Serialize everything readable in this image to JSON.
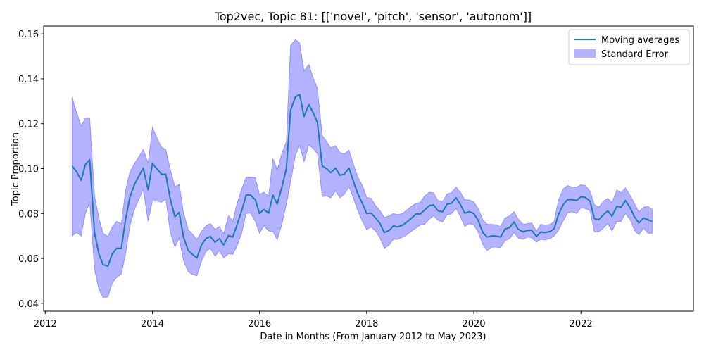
{
  "colors": {
    "line": "#1f77b4",
    "band": "#0000ff",
    "band_opacity": 0.3
  },
  "chart_data": {
    "type": "line",
    "title": "Top2vec, Topic 81: [['novel', 'pitch', 'sensor', 'autonom']]",
    "xlabel": "Date in Months (From January 2012 to May 2023)",
    "ylabel": "Topic Proportion",
    "xlim": [
      2011.97,
      2024.1
    ],
    "ylim": [
      0.0365,
      0.1635
    ],
    "x_ticks": [
      2012,
      2014,
      2016,
      2018,
      2020,
      2022
    ],
    "y_ticks": [
      0.04,
      0.06,
      0.08,
      0.1,
      0.12,
      0.14,
      0.16
    ],
    "x_tick_labels": [
      "2012",
      "2014",
      "2016",
      "2018",
      "2020",
      "2022"
    ],
    "y_tick_labels": [
      "0.04",
      "0.06",
      "0.08",
      "0.10",
      "0.12",
      "0.14",
      "0.16"
    ],
    "grid": false,
    "legend_position": "top-right",
    "legend": [
      {
        "label": "Moving averages",
        "kind": "line"
      },
      {
        "label": "Standard Error",
        "kind": "band"
      }
    ],
    "series": [
      {
        "name": "Moving averages",
        "x": [
          2012.5,
          2012.58,
          2012.67,
          2012.75,
          2012.83,
          2012.92,
          2013.0,
          2013.08,
          2013.17,
          2013.25,
          2013.33,
          2013.42,
          2013.5,
          2013.58,
          2013.67,
          2013.75,
          2013.83,
          2013.92,
          2014.0,
          2014.08,
          2014.17,
          2014.25,
          2014.33,
          2014.42,
          2014.5,
          2014.58,
          2014.67,
          2014.75,
          2014.83,
          2014.92,
          2015.0,
          2015.08,
          2015.17,
          2015.25,
          2015.33,
          2015.42,
          2015.5,
          2015.58,
          2015.67,
          2015.75,
          2015.83,
          2015.92,
          2016.0,
          2016.08,
          2016.17,
          2016.25,
          2016.33,
          2016.42,
          2016.5,
          2016.58,
          2016.67,
          2016.75,
          2016.83,
          2016.92,
          2017.0,
          2017.08,
          2017.17,
          2017.25,
          2017.33,
          2017.42,
          2017.5,
          2017.58,
          2017.67,
          2017.75,
          2017.83,
          2017.92,
          2018.0,
          2018.08,
          2018.17,
          2018.25,
          2018.33,
          2018.42,
          2018.5,
          2018.58,
          2018.67,
          2018.75,
          2018.83,
          2018.92,
          2019.0,
          2019.08,
          2019.17,
          2019.25,
          2019.33,
          2019.42,
          2019.5,
          2019.58,
          2019.67,
          2019.75,
          2019.83,
          2019.92,
          2020.0,
          2020.08,
          2020.17,
          2020.25,
          2020.33,
          2020.42,
          2020.5,
          2020.58,
          2020.67,
          2020.75,
          2020.83,
          2020.92,
          2021.0,
          2021.08,
          2021.17,
          2021.25,
          2021.33,
          2021.42,
          2021.5,
          2021.58,
          2021.67,
          2021.75,
          2021.83,
          2021.92,
          2022.0,
          2022.08,
          2022.17,
          2022.25,
          2022.33,
          2022.42,
          2022.5,
          2022.58,
          2022.67,
          2022.75,
          2022.83,
          2022.92,
          2023.0,
          2023.08,
          2023.17,
          2023.25,
          2023.33
        ],
        "y": [
          0.1012,
          0.0988,
          0.0948,
          0.1018,
          0.104,
          0.0715,
          0.0622,
          0.0572,
          0.0566,
          0.062,
          0.0645,
          0.0645,
          0.0775,
          0.0872,
          0.0932,
          0.0968,
          0.1002,
          0.0905,
          0.1022,
          0.1,
          0.0975,
          0.0975,
          0.0868,
          0.0785,
          0.0805,
          0.0695,
          0.0635,
          0.0618,
          0.0602,
          0.0662,
          0.0688,
          0.0698,
          0.0672,
          0.0688,
          0.066,
          0.0702,
          0.0695,
          0.075,
          0.0815,
          0.0882,
          0.0882,
          0.0862,
          0.08,
          0.0818,
          0.0802,
          0.0882,
          0.0842,
          0.092,
          0.1,
          0.126,
          0.132,
          0.133,
          0.1232,
          0.1285,
          0.125,
          0.1205,
          0.1012,
          0.1,
          0.0982,
          0.1002,
          0.097,
          0.0975,
          0.1002,
          0.0945,
          0.089,
          0.0845,
          0.08,
          0.0802,
          0.078,
          0.0755,
          0.0715,
          0.0725,
          0.0745,
          0.074,
          0.0748,
          0.0762,
          0.0778,
          0.0798,
          0.0798,
          0.0815,
          0.0835,
          0.0838,
          0.0812,
          0.0808,
          0.0842,
          0.0845,
          0.087,
          0.084,
          0.0802,
          0.0808,
          0.08,
          0.077,
          0.0715,
          0.0695,
          0.07,
          0.07,
          0.0695,
          0.073,
          0.0738,
          0.0762,
          0.073,
          0.0718,
          0.0725,
          0.0725,
          0.0698,
          0.0718,
          0.0715,
          0.072,
          0.0732,
          0.0795,
          0.084,
          0.0862,
          0.0862,
          0.0858,
          0.0875,
          0.0872,
          0.0855,
          0.0778,
          0.0772,
          0.0795,
          0.0812,
          0.0788,
          0.0832,
          0.0828,
          0.0858,
          0.0825,
          0.0785,
          0.0758,
          0.078,
          0.0772,
          0.0765
        ],
        "lower": [
          0.07,
          0.0715,
          0.07,
          0.08,
          0.085,
          0.055,
          0.0462,
          0.0425,
          0.0428,
          0.049,
          0.0515,
          0.053,
          0.062,
          0.0745,
          0.082,
          0.0865,
          0.0905,
          0.0765,
          0.0855,
          0.0855,
          0.085,
          0.0865,
          0.072,
          0.065,
          0.069,
          0.059,
          0.054,
          0.0528,
          0.0522,
          0.059,
          0.063,
          0.0645,
          0.061,
          0.0635,
          0.0602,
          0.062,
          0.0618,
          0.0655,
          0.0715,
          0.08,
          0.0802,
          0.0765,
          0.0712,
          0.0745,
          0.0722,
          0.072,
          0.0682,
          0.0755,
          0.084,
          0.094,
          0.106,
          0.1102,
          0.103,
          0.1105,
          0.109,
          0.1065,
          0.0875,
          0.0878,
          0.087,
          0.09,
          0.087,
          0.0885,
          0.0918,
          0.087,
          0.0815,
          0.0765,
          0.0728,
          0.074,
          0.072,
          0.069,
          0.0645,
          0.066,
          0.0685,
          0.0685,
          0.0695,
          0.0705,
          0.072,
          0.0735,
          0.0748,
          0.0752,
          0.0775,
          0.079,
          0.077,
          0.0762,
          0.0795,
          0.0798,
          0.0822,
          0.0785,
          0.0742,
          0.0755,
          0.0748,
          0.0718,
          0.066,
          0.0635,
          0.065,
          0.065,
          0.0648,
          0.0678,
          0.0688,
          0.0715,
          0.069,
          0.0685,
          0.0695,
          0.0692,
          0.0672,
          0.0685,
          0.0682,
          0.0688,
          0.07,
          0.0725,
          0.0768,
          0.0802,
          0.0808,
          0.08,
          0.0825,
          0.0822,
          0.0812,
          0.0718,
          0.0718,
          0.0735,
          0.0755,
          0.0722,
          0.0765,
          0.0765,
          0.08,
          0.0772,
          0.0725,
          0.0705,
          0.0735,
          0.0712,
          0.0712
        ],
        "upper": [
          0.1318,
          0.1255,
          0.119,
          0.1225,
          0.1225,
          0.088,
          0.0782,
          0.0712,
          0.0698,
          0.074,
          0.0765,
          0.0755,
          0.0905,
          0.0985,
          0.1025,
          0.1055,
          0.1085,
          0.1025,
          0.1185,
          0.114,
          0.1095,
          0.1085,
          0.1,
          0.092,
          0.093,
          0.0805,
          0.0728,
          0.0708,
          0.0685,
          0.0722,
          0.0745,
          0.0755,
          0.073,
          0.0742,
          0.071,
          0.079,
          0.0765,
          0.0845,
          0.0912,
          0.0962,
          0.096,
          0.096,
          0.0885,
          0.0895,
          0.0878,
          0.1045,
          0.0995,
          0.107,
          0.112,
          0.155,
          0.1575,
          0.156,
          0.1435,
          0.1465,
          0.1405,
          0.136,
          0.1148,
          0.1122,
          0.1092,
          0.1102,
          0.1072,
          0.1065,
          0.1082,
          0.1022,
          0.0965,
          0.0925,
          0.0872,
          0.0868,
          0.0835,
          0.0812,
          0.0782,
          0.079,
          0.08,
          0.0795,
          0.08,
          0.0815,
          0.0832,
          0.0845,
          0.085,
          0.0878,
          0.0895,
          0.0892,
          0.0858,
          0.0855,
          0.0888,
          0.0892,
          0.0918,
          0.0895,
          0.0862,
          0.086,
          0.0852,
          0.0822,
          0.0772,
          0.0752,
          0.0752,
          0.075,
          0.0742,
          0.078,
          0.079,
          0.0808,
          0.0775,
          0.0752,
          0.0755,
          0.0758,
          0.0722,
          0.0752,
          0.0748,
          0.0752,
          0.0765,
          0.086,
          0.091,
          0.0925,
          0.0918,
          0.0918,
          0.0928,
          0.0925,
          0.09,
          0.084,
          0.0828,
          0.0855,
          0.0868,
          0.085,
          0.0905,
          0.0892,
          0.0915,
          0.088,
          0.0845,
          0.0808,
          0.0828,
          0.0832,
          0.0818
        ]
      }
    ]
  }
}
